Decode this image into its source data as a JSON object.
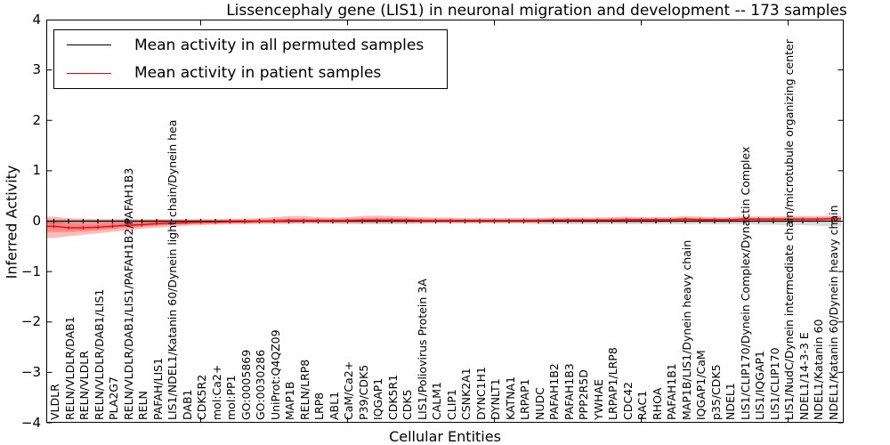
{
  "title": "Lissencephaly gene (LIS1) in neuronal migration and development -- 173 samples",
  "legend": {
    "items": [
      {
        "label": "Mean activity in all permuted samples",
        "color": "#000000"
      },
      {
        "label": "Mean activity in patient samples",
        "color": "#ff0000"
      }
    ]
  },
  "axes": {
    "ylabel": "Inferred Activity",
    "xlabel": "Cellular Entities",
    "ytick_labels": [
      "4",
      "3",
      "2",
      "1",
      "0",
      "−1",
      "−2",
      "−3",
      "−4"
    ],
    "ytick_values": [
      4,
      3,
      2,
      1,
      0,
      -1,
      -2,
      -3,
      -4
    ],
    "ylim": [
      -4,
      4
    ]
  },
  "chart_data": {
    "type": "line",
    "title": "Lissencephaly gene (LIS1) in neuronal migration and development -- 173 samples",
    "xlabel": "Cellular Entities",
    "ylabel": "Inferred Activity",
    "ylim": [
      -4,
      4
    ],
    "grid": false,
    "legend_position": "upper left",
    "xtick_positions": [
      10,
      20,
      30,
      40,
      50
    ],
    "categories": [
      "VLDLR",
      "RELN/VLDLR/DAB1",
      "RELN/VLDLR",
      "RELN/VLDLR/DAB1/LIS1",
      "PLA2G7",
      "RELN/VLDLR/DAB1/LIS1/PAFAH1B2/PAFAH1B3",
      "RELN",
      "PAFAH/LIS1",
      "LIS1/NDEL1/Katanin 60/Dynein light chain/Dynein hea",
      "DAB1",
      "CDK5R2",
      "mol:Ca2+",
      "mol:PP1",
      "GO:0005869",
      "GO:0030286",
      "UniProt:Q4QZ09",
      "MAP1B",
      "RELN/LRP8",
      "LRP8",
      "ABL1",
      "CaM/Ca2+",
      "P39/CDK5",
      "IQGAP1",
      "CDK5R1",
      "CDK5",
      "LIS1/Poliovirus Protein 3A",
      "CALM1",
      "CLIP1",
      "CSNK2A1",
      "DYNC1H1",
      "DYNLT1",
      "KATNA1",
      "LRPAP1",
      "NUDC",
      "PAFAH1B2",
      "PAFAH1B3",
      "PPP2R5D",
      "YWHAE",
      "LRPAP1/LRP8",
      "CDC42",
      "RAC1",
      "RHOA",
      "PAFAH1B1",
      "MAP1B/LIS1/Dynein heavy chain",
      "IQGAP1/CaM",
      "p35/CDK5",
      "NDEL1",
      "LIS1/CLIP170/Dynein Complex/Dynactin Complex",
      "LIS1/IQGAP1",
      "LIS1/CLIP170",
      "LIS1/NudC/Dynein intermediate chain/microtubule organizing center",
      "NDEL1/14-3-3 E",
      "NDEL1/Katanin 60",
      "NDEL1/Katanin 60/Dynein heavy chain"
    ],
    "series": [
      {
        "name": "Mean activity in all permuted samples",
        "color": "#000000",
        "values": [
          0,
          0,
          0,
          0,
          0,
          0,
          0,
          0,
          0,
          0,
          0,
          0,
          0,
          0,
          0,
          0,
          0,
          0,
          0,
          0,
          0,
          0,
          0,
          0,
          0,
          0,
          0,
          0,
          0,
          0,
          0,
          0,
          0,
          0,
          0,
          0,
          0,
          0,
          0,
          0,
          0,
          0,
          0,
          0,
          0,
          0,
          0,
          0,
          0,
          0,
          0,
          0,
          0,
          0
        ]
      },
      {
        "name": "Mean activity in patient samples",
        "color": "#ff0000",
        "values": [
          -0.1,
          -0.13,
          -0.13,
          -0.12,
          -0.1,
          -0.08,
          -0.07,
          -0.05,
          -0.04,
          -0.03,
          -0.02,
          -0.02,
          -0.01,
          -0.01,
          0.0,
          0.0,
          0.01,
          0.01,
          0.01,
          0.01,
          0.01,
          0.02,
          0.02,
          0.02,
          0.02,
          0.01,
          0.01,
          0.01,
          0.01,
          0.01,
          0.01,
          0.01,
          0.01,
          0.01,
          0.02,
          0.02,
          0.02,
          0.02,
          0.02,
          0.03,
          0.03,
          0.03,
          0.03,
          0.04,
          0.03,
          0.03,
          0.03,
          0.04,
          0.04,
          0.04,
          0.04,
          0.04,
          0.04,
          0.05
        ]
      }
    ],
    "bands": [
      {
        "name": "permuted samples range",
        "color": "#999999",
        "opacity": 0.35,
        "upper": [
          0.04,
          0.03,
          0.03,
          0.03,
          0.03,
          0.03,
          0.03,
          0.03,
          0.03,
          0.03,
          0.03,
          0.03,
          0.03,
          0.03,
          0.04,
          0.04,
          0.04,
          0.04,
          0.04,
          0.04,
          0.05,
          0.05,
          0.05,
          0.05,
          0.05,
          0.04,
          0.04,
          0.04,
          0.04,
          0.04,
          0.04,
          0.04,
          0.04,
          0.05,
          0.05,
          0.05,
          0.05,
          0.05,
          0.05,
          0.05,
          0.05,
          0.05,
          0.05,
          0.05,
          0.05,
          0.04,
          0.04,
          0.04,
          0.04,
          0.04,
          0.04,
          0.03,
          0.03,
          0.03
        ],
        "lower": [
          -0.06,
          -0.05,
          -0.05,
          -0.05,
          -0.05,
          -0.04,
          -0.04,
          -0.04,
          -0.04,
          -0.04,
          -0.04,
          -0.04,
          -0.04,
          -0.04,
          -0.05,
          -0.05,
          -0.05,
          -0.05,
          -0.05,
          -0.05,
          -0.06,
          -0.06,
          -0.06,
          -0.06,
          -0.06,
          -0.05,
          -0.05,
          -0.05,
          -0.05,
          -0.05,
          -0.05,
          -0.05,
          -0.05,
          -0.06,
          -0.06,
          -0.06,
          -0.06,
          -0.06,
          -0.06,
          -0.06,
          -0.06,
          -0.06,
          -0.06,
          -0.06,
          -0.06,
          -0.06,
          -0.06,
          -0.06,
          -0.07,
          -0.07,
          -0.08,
          -0.08,
          -0.09,
          -0.1
        ]
      },
      {
        "name": "patient samples range",
        "color": "#ff0000",
        "opacity": 0.27,
        "upper": [
          0.09,
          0.06,
          0.05,
          0.04,
          0.04,
          0.04,
          0.04,
          0.04,
          0.04,
          0.04,
          0.04,
          0.04,
          0.05,
          0.05,
          0.06,
          0.08,
          0.1,
          0.1,
          0.08,
          0.07,
          0.08,
          0.1,
          0.11,
          0.1,
          0.09,
          0.08,
          0.07,
          0.07,
          0.06,
          0.06,
          0.06,
          0.06,
          0.06,
          0.06,
          0.07,
          0.07,
          0.07,
          0.07,
          0.08,
          0.09,
          0.08,
          0.08,
          0.08,
          0.1,
          0.09,
          0.08,
          0.08,
          0.1,
          0.09,
          0.09,
          0.1,
          0.1,
          0.1,
          0.11
        ],
        "lower": [
          -0.33,
          -0.3,
          -0.27,
          -0.24,
          -0.21,
          -0.18,
          -0.15,
          -0.13,
          -0.11,
          -0.09,
          -0.08,
          -0.07,
          -0.06,
          -0.06,
          -0.05,
          -0.05,
          -0.05,
          -0.04,
          -0.04,
          -0.04,
          -0.04,
          -0.04,
          -0.04,
          -0.04,
          -0.04,
          -0.04,
          -0.03,
          -0.03,
          -0.03,
          -0.03,
          -0.03,
          -0.03,
          -0.03,
          -0.03,
          -0.03,
          -0.03,
          -0.03,
          -0.03,
          -0.03,
          -0.03,
          -0.03,
          -0.03,
          -0.02,
          -0.02,
          -0.02,
          -0.02,
          -0.02,
          -0.02,
          -0.02,
          -0.02,
          -0.01,
          -0.01,
          -0.01,
          0.0
        ]
      }
    ]
  }
}
